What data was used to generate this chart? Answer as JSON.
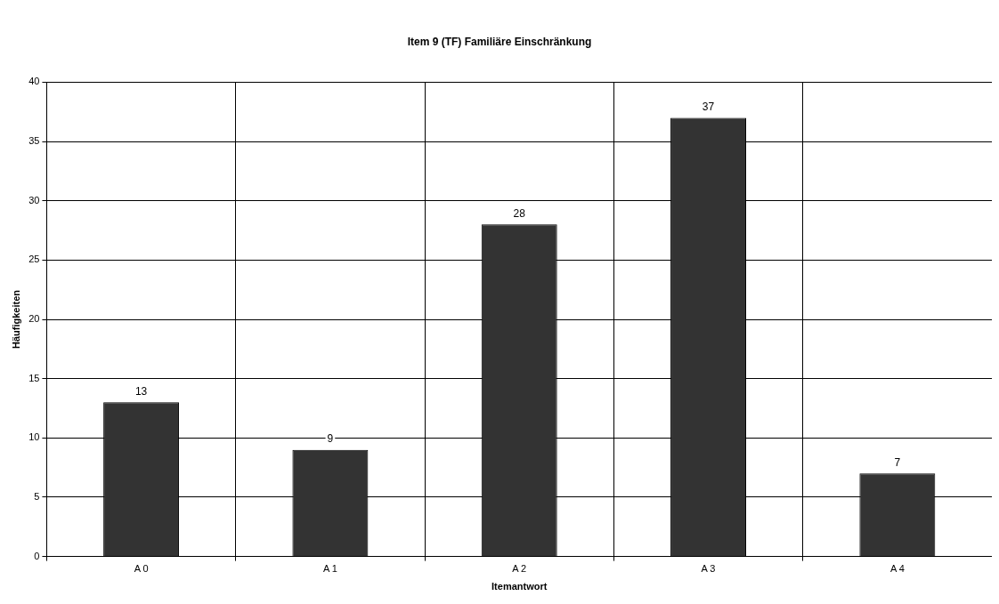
{
  "chart_data": {
    "type": "bar",
    "title": "Item 9 (TF) Familiäre Einschränkung",
    "xlabel": "Itemantwort",
    "ylabel": "Häufigkeiten",
    "categories": [
      "A 0",
      "A 1",
      "A 2",
      "A 3",
      "A 4"
    ],
    "values": [
      13,
      9,
      28,
      37,
      7
    ],
    "color": "#333333",
    "ylim": [
      0,
      40
    ],
    "yticks": [
      0,
      5,
      10,
      15,
      20,
      25,
      30,
      35,
      40
    ],
    "grid": true,
    "data_labels": true
  }
}
